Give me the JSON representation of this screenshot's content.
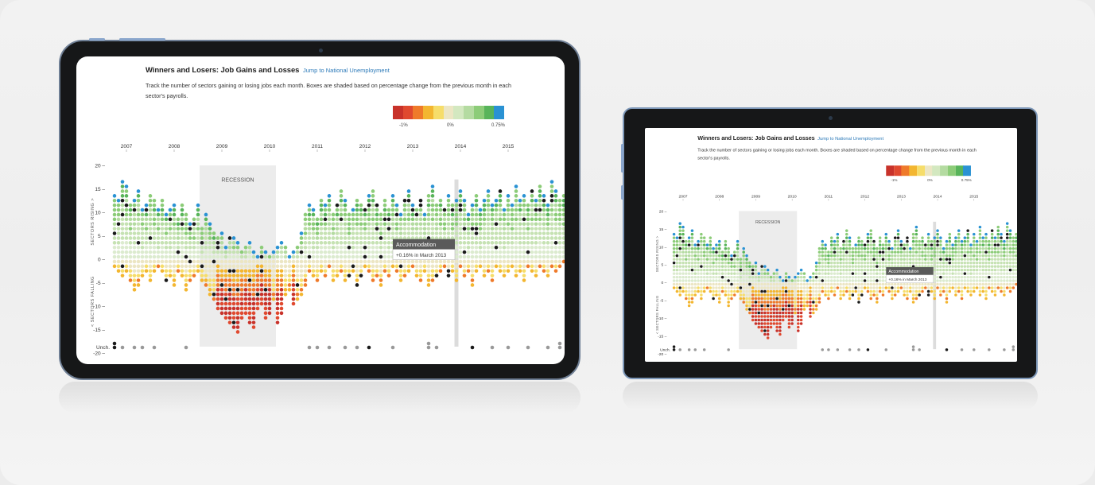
{
  "pages": [
    {
      "title": "Winners and Losers: Job Gains and Losses",
      "jump_link": "Jump to National Unemployment",
      "description": "Track the number of sectors gaining or losing jobs each month. Boxes are shaded based on percentage change from the previous month in each sector's payrolls.",
      "legend": {
        "colors": [
          "#c8322a",
          "#e0492f",
          "#ef7a2a",
          "#f3b630",
          "#f6dd6a",
          "#ece6c4",
          "#d3e8c0",
          "#b4dba1",
          "#8ccc78",
          "#58b45a",
          "#2a92d3"
        ],
        "labels": [
          "-1%",
          "0%",
          "0.75%"
        ]
      },
      "chart_data": {
        "type": "scatter",
        "years": [
          "2007",
          "2008",
          "2009",
          "2010",
          "2011",
          "2012",
          "2013",
          "2014",
          "2015"
        ],
        "y_ticks": [
          "20",
          "15",
          "10",
          "5",
          "0",
          "-5",
          "-10",
          "-15",
          "-20"
        ],
        "ylabel_rising": "SECTORS RISING >",
        "ylabel_falling": "< SECTORS FALLING",
        "unchanged_label": "Unch.",
        "recession_label": "RECESSION",
        "tooltip": {
          "title": "Accommodation",
          "text": "+0.16% in March 2013"
        },
        "rising": [
          14,
          13,
          17,
          16,
          12,
          13,
          15,
          11,
          12,
          14,
          13,
          11,
          13,
          10,
          11,
          12,
          9,
          12,
          10,
          8,
          9,
          12,
          7,
          10,
          8,
          6,
          5,
          6,
          3,
          5,
          5,
          4,
          2,
          3,
          4,
          2,
          1,
          3,
          2,
          1,
          2,
          3,
          4,
          3,
          1,
          2,
          3,
          6,
          10,
          12,
          11,
          9,
          13,
          12,
          14,
          10,
          12,
          15,
          13,
          10,
          11,
          13,
          12,
          11,
          14,
          15,
          12,
          10,
          13,
          11,
          14,
          12,
          10,
          13,
          15,
          12,
          11,
          13,
          10,
          14,
          16,
          12,
          13,
          11,
          14,
          12,
          13,
          15,
          13,
          10,
          12,
          14,
          11,
          13,
          15,
          12,
          13,
          15,
          11,
          14,
          12,
          16,
          13,
          14,
          12,
          15,
          13,
          16,
          14,
          12,
          17,
          15,
          13,
          14,
          16,
          15,
          17,
          14
        ],
        "falling": [
          2,
          3,
          4,
          3,
          5,
          7,
          6,
          4,
          3,
          5,
          3,
          2,
          3,
          5,
          4,
          6,
          3,
          4,
          7,
          5,
          4,
          3,
          5,
          6,
          8,
          9,
          11,
          12,
          13,
          14,
          15,
          16,
          13,
          12,
          14,
          15,
          11,
          10,
          13,
          12,
          9,
          14,
          12,
          8,
          7,
          10,
          9,
          8,
          6,
          3,
          4,
          5,
          3,
          4,
          2,
          5,
          4,
          3,
          5,
          4,
          3,
          6,
          4,
          2,
          3,
          5,
          4,
          6,
          3,
          4,
          2,
          3,
          5,
          4,
          3,
          2,
          4,
          5,
          3,
          6,
          5,
          4,
          3,
          2,
          4,
          3,
          5,
          2,
          4,
          3,
          6,
          3,
          2,
          4,
          3,
          5,
          2,
          3,
          4,
          3,
          2,
          4,
          3,
          5,
          2,
          3,
          4,
          2,
          3,
          4,
          2,
          3,
          2,
          1,
          2,
          3,
          2,
          1
        ],
        "unchanged": [
          2,
          0,
          1,
          0,
          0,
          1,
          0,
          1,
          0,
          0,
          1,
          0,
          0,
          0,
          0,
          0,
          0,
          0,
          1,
          0,
          0,
          0,
          0,
          0,
          0,
          0,
          0,
          0,
          0,
          0,
          0,
          0,
          0,
          0,
          0,
          0,
          0,
          0,
          0,
          0,
          0,
          0,
          0,
          0,
          0,
          0,
          0,
          0,
          0,
          1,
          0,
          1,
          0,
          0,
          1,
          0,
          0,
          0,
          1,
          0,
          0,
          1,
          0,
          0,
          1,
          0,
          0,
          0,
          0,
          0,
          1,
          0,
          0,
          0,
          0,
          0,
          0,
          0,
          0,
          2,
          0,
          1,
          0,
          0,
          0,
          0,
          0,
          0,
          0,
          0,
          1,
          0,
          0,
          0,
          0,
          1,
          0,
          0,
          0,
          1,
          0,
          0,
          0,
          0,
          1,
          0,
          0,
          0,
          0,
          1,
          0,
          0,
          2,
          0,
          0,
          1,
          1,
          0
        ]
      }
    },
    {
      "title": "Winners and Losers: Job Gains and Losses",
      "jump_link": "Jump to National Unemployment",
      "description": "Track the number of sectors gaining or losing jobs each month. Boxes are shaded based on percentage change from the previous month in each sector's payrolls.",
      "legend": {
        "colors": [
          "#c8322a",
          "#e0492f",
          "#ef7a2a",
          "#f3b630",
          "#f6dd6a",
          "#ece6c4",
          "#d3e8c0",
          "#b4dba1",
          "#8ccc78",
          "#58b45a",
          "#2a92d3"
        ],
        "labels": [
          "-1%",
          "0%",
          "0.75%"
        ]
      },
      "chart_data": {
        "type": "scatter",
        "years": [
          "2007",
          "2008",
          "2009",
          "2010",
          "2011",
          "2012",
          "2013",
          "2014",
          "2015"
        ],
        "y_ticks": [
          "20",
          "15",
          "10",
          "5",
          "0",
          "-5",
          "-10",
          "-15",
          "-20"
        ],
        "ylabel_rising": "SECTORS RISING >",
        "ylabel_falling": "< SECTORS FALLING",
        "unchanged_label": "Unch.",
        "recession_label": "RECESSION",
        "tooltip": {
          "title": "Accommodation",
          "text": "+0.16% in March 2013"
        },
        "rising": [
          14,
          13,
          17,
          16,
          12,
          13,
          15,
          11,
          12,
          14,
          13,
          11,
          13,
          10,
          11,
          12,
          9,
          12,
          10,
          8,
          9,
          12,
          7,
          10,
          8,
          6,
          5,
          6,
          3,
          5,
          5,
          4,
          2,
          3,
          4,
          2,
          1,
          3,
          2,
          1,
          2,
          3,
          4,
          3,
          1,
          2,
          3,
          6,
          10,
          12,
          11,
          9,
          13,
          12,
          14,
          10,
          12,
          15,
          13,
          10,
          11,
          13,
          12,
          11,
          14,
          15,
          12,
          10,
          13,
          11,
          14,
          12,
          10,
          13,
          15,
          12,
          11,
          13,
          10,
          14,
          16,
          12,
          13,
          11,
          14,
          12,
          13,
          15,
          13,
          10,
          12,
          14,
          11,
          13,
          15,
          12,
          13,
          15,
          11,
          14,
          12,
          16,
          13,
          14,
          12,
          15,
          13,
          16,
          14,
          12,
          17,
          15,
          13,
          14,
          16,
          15,
          17,
          14
        ],
        "falling": [
          2,
          3,
          4,
          3,
          5,
          7,
          6,
          4,
          3,
          5,
          3,
          2,
          3,
          5,
          4,
          6,
          3,
          4,
          7,
          5,
          4,
          3,
          5,
          6,
          8,
          9,
          11,
          12,
          13,
          14,
          15,
          16,
          13,
          12,
          14,
          15,
          11,
          10,
          13,
          12,
          9,
          14,
          12,
          8,
          7,
          10,
          9,
          8,
          6,
          3,
          4,
          5,
          3,
          4,
          2,
          5,
          4,
          3,
          5,
          4,
          3,
          6,
          4,
          2,
          3,
          5,
          4,
          6,
          3,
          4,
          2,
          3,
          5,
          4,
          3,
          2,
          4,
          5,
          3,
          6,
          5,
          4,
          3,
          2,
          4,
          3,
          5,
          2,
          4,
          3,
          6,
          3,
          2,
          4,
          3,
          5,
          2,
          3,
          4,
          3,
          2,
          4,
          3,
          5,
          2,
          3,
          4,
          2,
          3,
          4,
          2,
          3,
          2,
          1,
          2,
          3,
          2,
          1
        ],
        "unchanged": [
          2,
          0,
          1,
          0,
          0,
          1,
          0,
          1,
          0,
          0,
          1,
          0,
          0,
          0,
          0,
          0,
          0,
          0,
          1,
          0,
          0,
          0,
          0,
          0,
          0,
          0,
          0,
          0,
          0,
          0,
          0,
          0,
          0,
          0,
          0,
          0,
          0,
          0,
          0,
          0,
          0,
          0,
          0,
          0,
          0,
          0,
          0,
          0,
          0,
          1,
          0,
          1,
          0,
          0,
          1,
          0,
          0,
          0,
          1,
          0,
          0,
          1,
          0,
          0,
          1,
          0,
          0,
          0,
          0,
          0,
          1,
          0,
          0,
          0,
          0,
          0,
          0,
          0,
          0,
          2,
          0,
          1,
          0,
          0,
          0,
          0,
          0,
          0,
          0,
          0,
          1,
          0,
          0,
          0,
          0,
          1,
          0,
          0,
          0,
          1,
          0,
          0,
          0,
          0,
          1,
          0,
          0,
          0,
          0,
          1,
          0,
          0,
          2,
          0,
          0,
          1,
          1,
          0
        ]
      }
    }
  ]
}
